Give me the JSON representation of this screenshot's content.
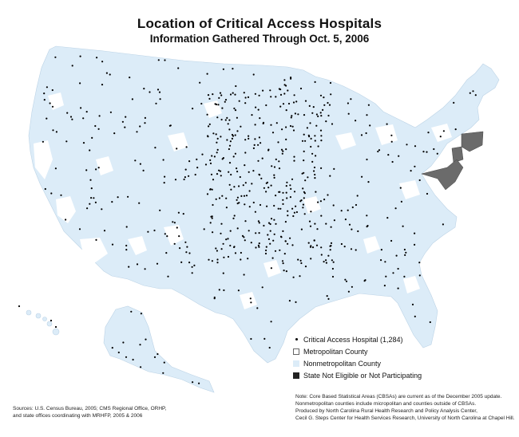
{
  "title": "Location of Critical Access Hospitals",
  "subtitle": "Information Gathered Through Oct. 5, 2006",
  "colors": {
    "nonmetro": "#dcecf8",
    "metro": "#ffffff",
    "not_participating": "#6b6b6b",
    "hospital": "#000000",
    "border": "#bcd3e6"
  },
  "legend": {
    "hospital": "Critical  Access Hospital (1,284)",
    "metro": "Metropolitan County",
    "nonmetro": "Nonmetropolitan County",
    "not_participating": "State Not Eligible or Not Participating"
  },
  "sources": [
    "Sources: U.S. Census Bureau, 2005; CMS Regional Office, ORHP,",
    "and state offices coordinating with MRHFP, 2005 & 2006"
  ],
  "note": [
    "Note: Core Based Statistical Areas (CBSAs) are current as of the December 2005 update.",
    "Nonmetropolitan counties include micropolitan and counties outside of CBSAs.",
    "Produced by North Carolina Rural Health Research and Policy Analysis Center,",
    "Cecil G. Steps Center for Health Services Research, University of North Carolina at Chapel Hill."
  ]
}
